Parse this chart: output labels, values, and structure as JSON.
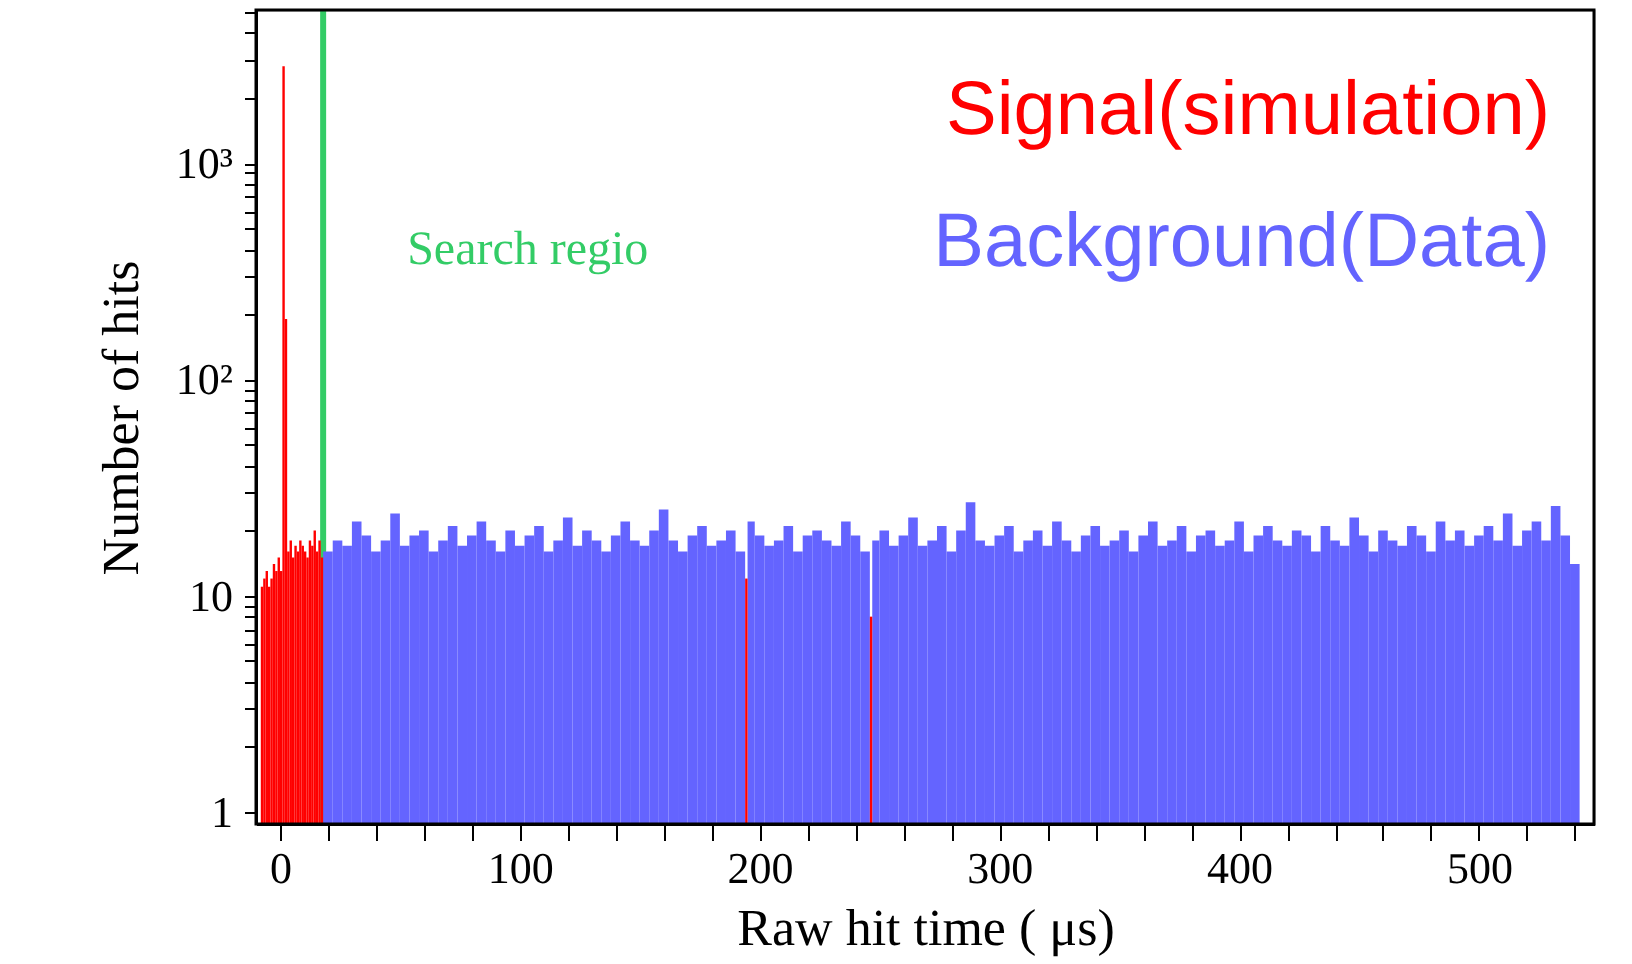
{
  "chart_data": {
    "type": "histogram",
    "xlabel": "Raw hit time ( μs)",
    "ylabel": "Number of hits",
    "log": "y",
    "legend": "top right",
    "xlim": [
      -10,
      548
    ],
    "xticks": [
      0,
      {
        "value": 20,
        "label": null
      },
      {
        "value": 40,
        "label": null
      },
      {
        "value": 60,
        "label": null
      },
      {
        "value": 80,
        "label": null
      },
      100,
      {
        "value": 120,
        "label": null
      },
      {
        "value": 140,
        "label": null
      },
      {
        "value": 160,
        "label": null
      },
      {
        "value": 180,
        "label": null
      },
      200,
      {
        "value": 220,
        "label": null
      },
      {
        "value": 240,
        "label": null
      },
      {
        "value": 260,
        "label": null
      },
      {
        "value": 280,
        "label": null
      },
      300,
      {
        "value": 320,
        "label": null
      },
      {
        "value": 340,
        "label": null
      },
      {
        "value": 360,
        "label": null
      },
      {
        "value": 380,
        "label": null
      },
      400,
      {
        "value": 420,
        "label": null
      },
      {
        "value": 440,
        "label": null
      },
      {
        "value": 460,
        "label": null
      },
      {
        "value": 480,
        "label": null
      },
      500,
      {
        "value": 520,
        "label": null
      },
      {
        "value": 540,
        "label": null
      }
    ],
    "ylim": [
      0.88,
      5100
    ],
    "yticks": [
      1,
      {
        "value": 2,
        "label": null
      },
      {
        "value": 3,
        "label": null
      },
      {
        "value": 4,
        "label": null
      },
      {
        "value": 5,
        "label": null
      },
      {
        "value": 6,
        "label": null
      },
      {
        "value": 7,
        "label": null
      },
      {
        "value": 8,
        "label": null
      },
      {
        "value": 9,
        "label": null
      },
      10,
      {
        "value": 20,
        "label": null
      },
      {
        "value": 30,
        "label": null
      },
      {
        "value": 40,
        "label": null
      },
      {
        "value": 50,
        "label": null
      },
      {
        "value": 60,
        "label": null
      },
      {
        "value": 70,
        "label": null
      },
      {
        "value": 80,
        "label": null
      },
      {
        "value": 90,
        "label": null
      },
      {
        "value": 100,
        "label": "10²"
      },
      {
        "value": 200,
        "label": null
      },
      {
        "value": 300,
        "label": null
      },
      {
        "value": 400,
        "label": null
      },
      {
        "value": 500,
        "label": null
      },
      {
        "value": 600,
        "label": null
      },
      {
        "value": 700,
        "label": null
      },
      {
        "value": 800,
        "label": null
      },
      {
        "value": 900,
        "label": null
      },
      {
        "value": 1000,
        "label": "10³"
      },
      {
        "value": 2000,
        "label": null
      },
      {
        "value": 3000,
        "label": null
      },
      {
        "value": 4000,
        "label": null
      },
      {
        "value": 5000,
        "label": null
      }
    ],
    "ref_lines": [
      {
        "axis": "x",
        "value": 18,
        "label": "Search regio",
        "color": "#33cc66"
      }
    ],
    "bins": [
      -8,
      -7,
      -6,
      -5,
      -4,
      -3,
      -2,
      -1,
      0,
      1,
      2,
      3,
      4,
      5,
      6,
      7,
      8,
      9,
      10,
      11,
      12,
      13,
      14,
      15,
      16,
      17,
      18,
      22,
      26,
      30,
      34,
      38,
      42,
      46,
      50,
      54,
      58,
      62,
      66,
      70,
      74,
      78,
      82,
      86,
      90,
      94,
      98,
      102,
      106,
      110,
      114,
      118,
      122,
      126,
      130,
      134,
      138,
      142,
      146,
      150,
      154,
      158,
      162,
      166,
      170,
      174,
      178,
      182,
      186,
      190,
      194,
      195,
      198,
      202,
      206,
      210,
      214,
      218,
      222,
      226,
      230,
      234,
      238,
      242,
      246,
      247,
      250,
      254,
      258,
      262,
      266,
      270,
      274,
      278,
      282,
      286,
      290,
      294,
      298,
      302,
      306,
      310,
      314,
      318,
      322,
      326,
      330,
      334,
      338,
      342,
      346,
      350,
      354,
      358,
      362,
      366,
      370,
      374,
      378,
      382,
      386,
      390,
      394,
      398,
      402,
      406,
      410,
      414,
      418,
      422,
      426,
      430,
      434,
      438,
      442,
      446,
      450,
      454,
      458,
      462,
      466,
      470,
      474,
      478,
      482,
      486,
      490,
      494,
      498,
      502,
      506,
      510,
      514,
      518,
      522,
      526,
      530,
      534,
      538,
      542
    ],
    "series": [
      {
        "name": "Background(Data)",
        "type": "histogram",
        "color": "#6464ff",
        "values": [
          null,
          null,
          null,
          null,
          null,
          null,
          null,
          null,
          null,
          null,
          null,
          null,
          null,
          null,
          null,
          null,
          null,
          null,
          null,
          null,
          null,
          null,
          null,
          null,
          null,
          null,
          16,
          18,
          17,
          22,
          19,
          16,
          18,
          24,
          17,
          19,
          20,
          16,
          18,
          21,
          17,
          19,
          22,
          18,
          16,
          20,
          17,
          19,
          21,
          16,
          18,
          23,
          17,
          20,
          18,
          16,
          19,
          22,
          18,
          17,
          20,
          25,
          18,
          16,
          19,
          21,
          17,
          18,
          20,
          16,
          null,
          22,
          19,
          17,
          18,
          21,
          16,
          19,
          20,
          18,
          17,
          22,
          19,
          16,
          null,
          18,
          20,
          17,
          19,
          23,
          17,
          18,
          21,
          16,
          20,
          27,
          18,
          17,
          19,
          21,
          16,
          18,
          20,
          17,
          22,
          18,
          16,
          19,
          21,
          17,
          18,
          20,
          16,
          19,
          22,
          17,
          18,
          21,
          16,
          19,
          20,
          17,
          18,
          22,
          16,
          19,
          21,
          18,
          17,
          20,
          19,
          16,
          21,
          18,
          17,
          23,
          19,
          16,
          20,
          18,
          17,
          21,
          19,
          16,
          22,
          18,
          20,
          17,
          19,
          21,
          18,
          24,
          17,
          20,
          22,
          18,
          26,
          19,
          14
        ]
      },
      {
        "name": "Signal(simulation)",
        "type": "histogram",
        "color": "#ff0000",
        "values": [
          11,
          12,
          13,
          11,
          12,
          14,
          13,
          15,
          13,
          2800,
          190,
          16,
          18,
          15,
          17,
          16,
          18,
          17,
          16,
          15,
          18,
          17,
          20,
          16,
          18,
          15,
          null,
          null,
          null,
          null,
          null,
          null,
          null,
          null,
          null,
          null,
          null,
          null,
          null,
          null,
          null,
          null,
          null,
          null,
          null,
          null,
          null,
          null,
          null,
          null,
          null,
          null,
          null,
          null,
          null,
          null,
          null,
          null,
          null,
          null,
          null,
          null,
          null,
          null,
          null,
          null,
          null,
          null,
          null,
          null,
          12,
          null,
          null,
          null,
          null,
          null,
          null,
          null,
          null,
          null,
          null,
          null,
          null,
          null,
          8,
          null,
          null,
          null,
          null,
          null,
          null,
          null,
          null,
          null,
          null,
          null,
          null,
          null,
          null,
          null,
          null,
          null,
          null,
          null,
          null,
          null,
          null,
          null,
          null,
          null,
          null,
          null,
          null,
          null,
          null,
          null,
          null,
          null,
          null,
          null,
          null,
          null,
          null,
          null,
          null,
          null,
          null,
          null,
          null,
          null,
          null,
          null,
          null,
          null,
          null,
          null,
          null,
          null,
          null,
          null,
          null,
          null,
          null,
          null,
          null,
          null,
          null,
          null,
          null,
          null,
          null,
          null,
          null,
          null,
          null,
          null,
          null,
          null,
          null
        ]
      }
    ]
  }
}
